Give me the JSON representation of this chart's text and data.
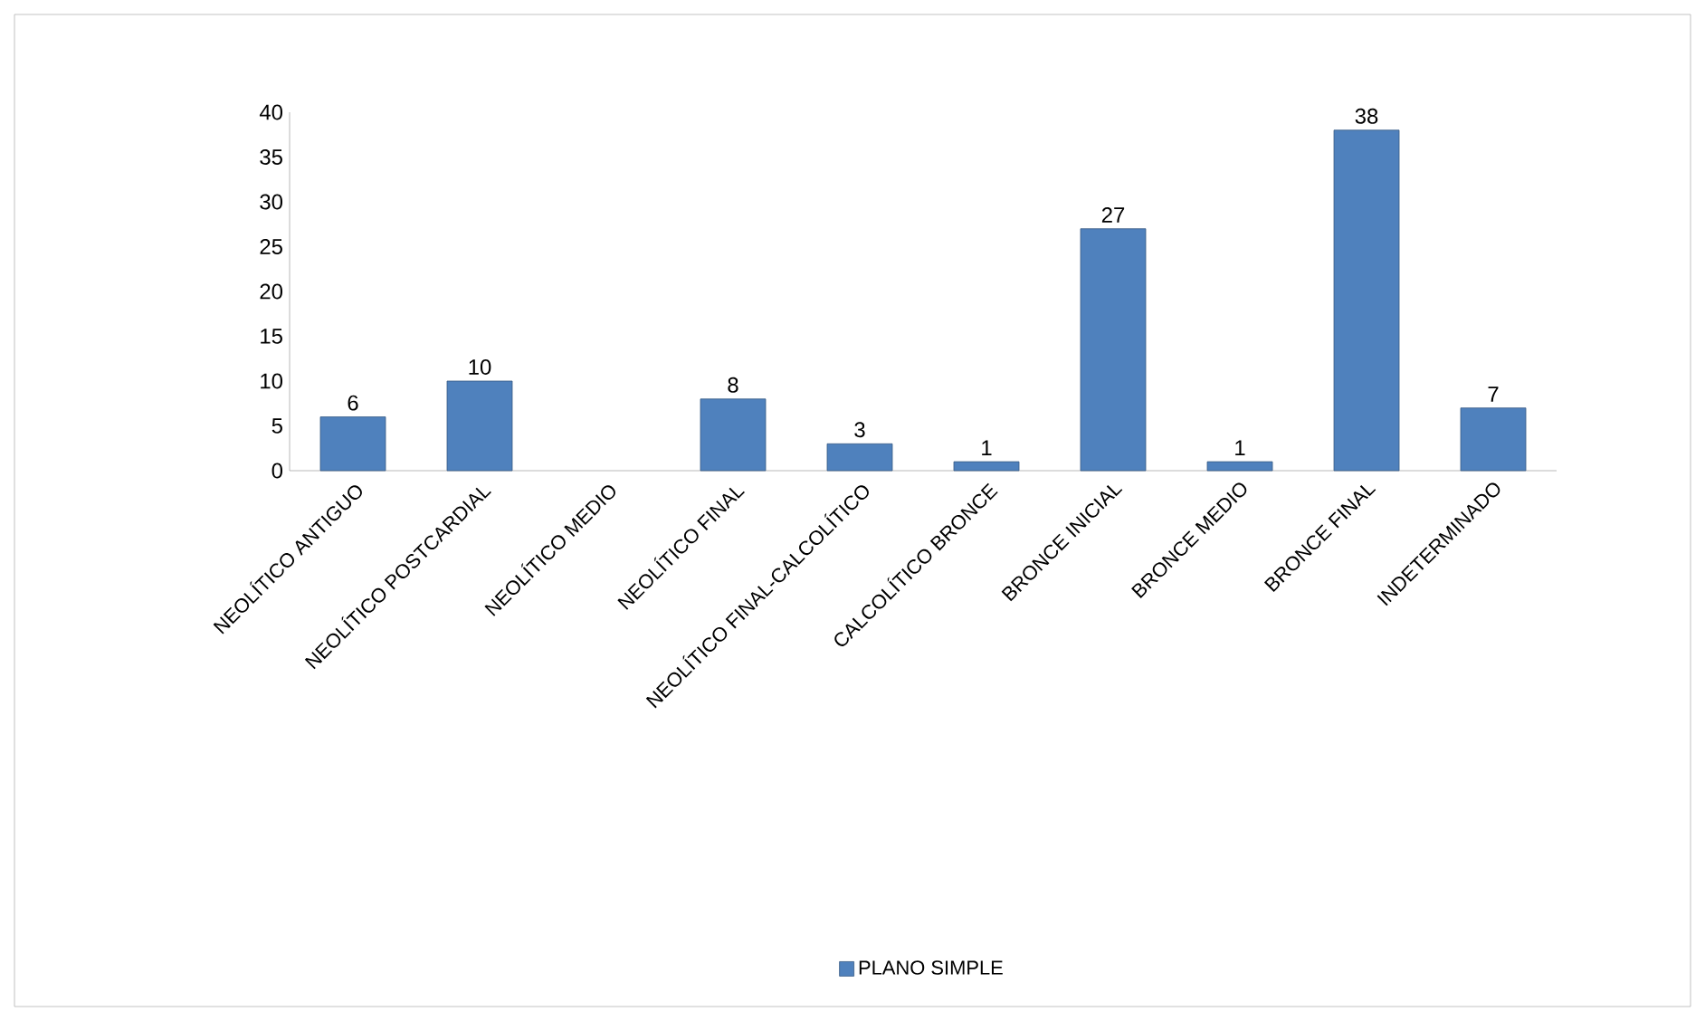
{
  "chart_data": {
    "type": "bar",
    "categories": [
      "NEOLÍTICO ANTIGUO",
      "NEOLÍTICO POSTCARDIAL",
      "NEOLÍTICO MEDIO",
      "NEOLÍTICO FINAL",
      "NEOLÍTICO FINAL-CALCOLÍTICO",
      "CALCOLÍTICO BRONCE",
      "BRONCE INICIAL",
      "BRONCE MEDIO",
      "BRONCE FINAL",
      "INDETERMINADO"
    ],
    "series": [
      {
        "name": "PLANO SIMPLE",
        "color": "#4f81bd",
        "values": [
          6,
          10,
          null,
          8,
          3,
          1,
          27,
          1,
          38,
          7
        ]
      }
    ],
    "ylim": [
      0,
      40
    ],
    "yticks": [
      0,
      5,
      10,
      15,
      20,
      25,
      30,
      35,
      40
    ],
    "data_labels": true,
    "legend": "bottom"
  }
}
